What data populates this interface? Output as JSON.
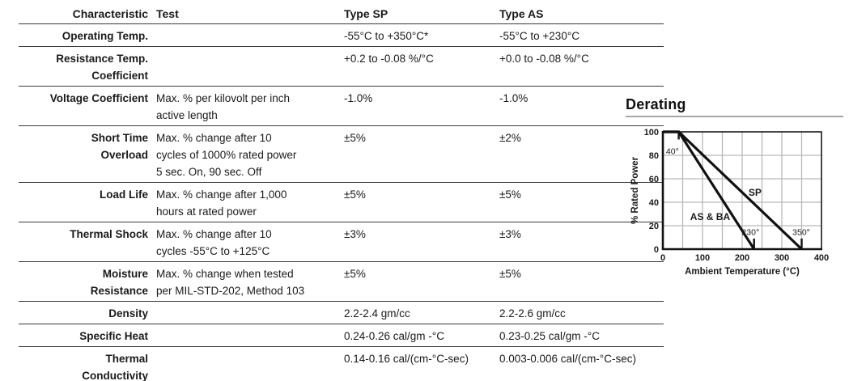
{
  "table": {
    "headers": [
      "Characteristic",
      "Test",
      "Type SP",
      "Type AS"
    ],
    "rows": [
      {
        "characteristic": "Operating Temp.",
        "test": "",
        "sp": "-55°C to +350°C*",
        "as": "-55°C to +230°C"
      },
      {
        "characteristic": "Resistance Temp.\nCoefficient",
        "test": "",
        "sp": "+0.2 to -0.08 %/°C",
        "as": "+0.0 to -0.08 %/°C"
      },
      {
        "characteristic": "Voltage Coefficient",
        "test": "Max. % per kilovolt per inch\nactive length",
        "sp": "-1.0%",
        "as": "-1.0%"
      },
      {
        "characteristic": "Short Time\nOverload",
        "test": "Max. % change after 10\ncycles of 1000% rated power\n5 sec. On, 90 sec. Off",
        "sp": "±5%",
        "as": "±2%"
      },
      {
        "characteristic": "Load Life",
        "test": "Max. % change after 1,000\nhours at rated power",
        "sp": "±5%",
        "as": "±5%"
      },
      {
        "characteristic": "Thermal Shock",
        "test": "Max. % change after 10\ncycles -55°C to +125°C",
        "sp": "±3%",
        "as": "±3%"
      },
      {
        "characteristic": "Moisture\nResistance",
        "test": "Max. % change when tested\nper MIL-STD-202, Method 103",
        "sp": "±5%",
        "as": "±5%"
      },
      {
        "characteristic": "Density",
        "test": "",
        "sp": "2.2-2.4 gm/cc",
        "as": "2.2-2.6 gm/cc"
      },
      {
        "characteristic": "Specific Heat",
        "test": "",
        "sp": "0.24-0.26 cal/gm -°C",
        "as": "0.23-0.25 cal/gm -°C"
      },
      {
        "characteristic": "Thermal\nConductivity",
        "test": "",
        "sp": "0.14-0.16 cal/(cm-°C-sec)",
        "as": "0.003-0.006 cal/(cm-°C-sec)"
      }
    ]
  },
  "derating": {
    "title": "Derating"
  },
  "chart_data": {
    "type": "line",
    "title": "Derating",
    "xlabel": "Ambient Temperature (°C)",
    "ylabel": "% Rated Power",
    "xlim": [
      0,
      400
    ],
    "ylim": [
      0,
      100
    ],
    "xticks": [
      0,
      100,
      200,
      300,
      400
    ],
    "yticks": [
      0,
      20,
      40,
      60,
      80,
      100
    ],
    "grid": true,
    "grid_x_step": 50,
    "grid_y_step": 20,
    "legend_position": "inline-labels",
    "series": [
      {
        "name": "SP",
        "points": [
          [
            0,
            100
          ],
          [
            40,
            100
          ],
          [
            350,
            0
          ]
        ]
      },
      {
        "name": "AS & BA",
        "points": [
          [
            0,
            100
          ],
          [
            40,
            100
          ],
          [
            230,
            0
          ]
        ]
      }
    ],
    "point_markers": [
      {
        "x": 40,
        "y1": 100,
        "y2": 93.5
      },
      {
        "x": 230,
        "y1": 0,
        "y2": 9
      },
      {
        "x": 350,
        "y1": 0,
        "y2": 9
      }
    ],
    "annotations": [
      {
        "text": "40°",
        "x": 8,
        "y": 81,
        "anchor": "start",
        "bold": false,
        "size": 10.5
      },
      {
        "text": "SP",
        "x": 216,
        "y": 45.5,
        "anchor": "start",
        "bold": true,
        "size": 12
      },
      {
        "text": "AS & BA",
        "x": 69,
        "y": 25,
        "anchor": "start",
        "bold": true,
        "size": 12
      },
      {
        "text": "230°",
        "x": 221,
        "y": 12,
        "anchor": "middle",
        "bold": false,
        "size": 10.5
      },
      {
        "text": "350°",
        "x": 349,
        "y": 12,
        "anchor": "middle",
        "bold": false,
        "size": 10.5
      }
    ],
    "colors": {
      "line": "#111111",
      "grid": "#b9b9b9",
      "frame": "#1a1a1a",
      "text": "#1a1a1a"
    }
  }
}
